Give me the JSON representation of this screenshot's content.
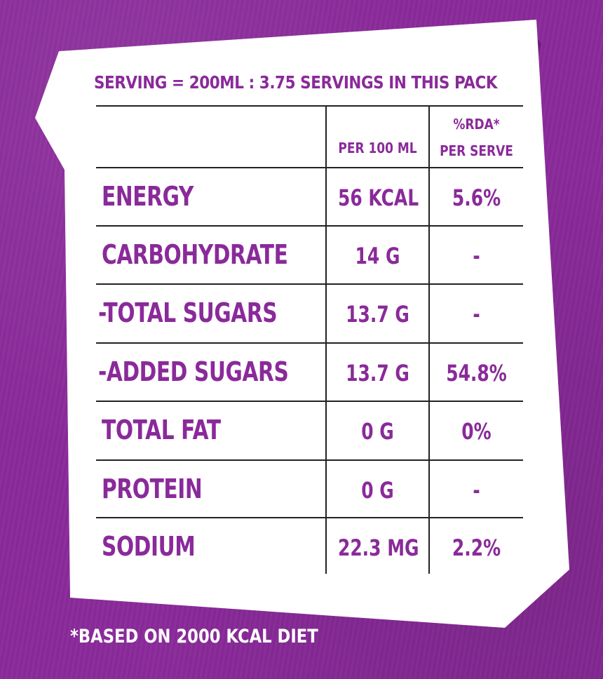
{
  "label": {
    "serving_line": "SERVING = 200ML : 3.75 SERVINGS IN THIS PACK",
    "columns": {
      "per100": "PER 100 ML",
      "rda_line1": "%RDA*",
      "rda_line2": "PER SERVE"
    },
    "rows": [
      {
        "nutrient": "ENERGY",
        "per100": "56 KCAL",
        "rda": "5.6%"
      },
      {
        "nutrient": "CARBOHYDRATE",
        "per100": "14 G",
        "rda": "-"
      },
      {
        "nutrient": "-TOTAL SUGARS",
        "per100": "13.7 G",
        "rda": "-"
      },
      {
        "nutrient": "-ADDED SUGARS",
        "per100": "13.7 G",
        "rda": "54.8%"
      },
      {
        "nutrient": "TOTAL FAT",
        "per100": "0 G",
        "rda": "0%"
      },
      {
        "nutrient": "PROTEIN",
        "per100": "0 G",
        "rda": "-"
      },
      {
        "nutrient": "SODIUM",
        "per100": "22.3 MG",
        "rda": "2.2%"
      }
    ],
    "footnote": "*BASED ON 2000 KCAL DIET"
  },
  "colors": {
    "background": "#8a2a9a",
    "card": "#ffffff",
    "text": "#8a2a9a",
    "rules": "#222222",
    "footnote": "#ffffff"
  }
}
